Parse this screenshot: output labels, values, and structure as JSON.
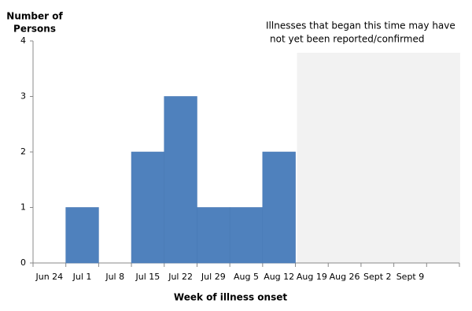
{
  "chart_data": {
    "type": "bar",
    "ylabel": [
      "Number of",
      "Persons"
    ],
    "xlabel": "Week of  illness onset",
    "annotation": [
      "Illnesses that began this time may have",
      "not yet been reported/confirmed"
    ],
    "shade_from": "Aug 19",
    "categories": [
      "Jun 24",
      "Jul 1",
      "Jul 8",
      "Jul 15",
      "Jul 22",
      "Jul 29",
      "Aug 5",
      "Aug 12",
      "Aug 19",
      "Aug 26",
      "Sept 2",
      "Sept 9",
      null
    ],
    "values": [
      0,
      1,
      0,
      2,
      3,
      1,
      1,
      2,
      0,
      0,
      0,
      0,
      0
    ],
    "color": "#4f81bd",
    "ylim": [
      0,
      4
    ],
    "yticks": [
      0,
      1,
      2,
      3,
      4
    ],
    "grid": false
  }
}
